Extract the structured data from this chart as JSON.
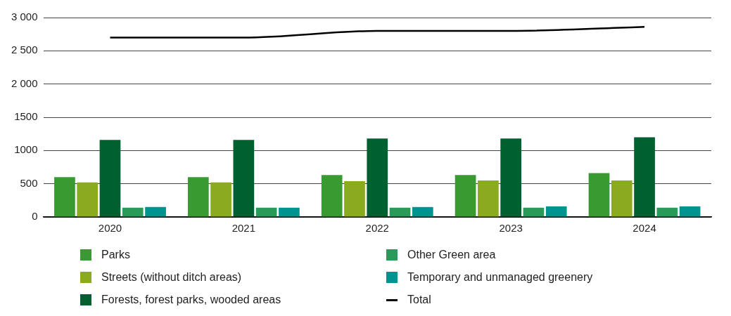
{
  "chart_data": {
    "type": "bar",
    "categories": [
      "2020",
      "2021",
      "2022",
      "2023",
      "2024"
    ],
    "series": [
      {
        "name": "Parks",
        "color": "#3a9a32",
        "values": [
          600,
          600,
          630,
          630,
          660
        ]
      },
      {
        "name": "Streets (without ditch areas)",
        "color": "#8aab1f",
        "values": [
          520,
          520,
          540,
          550,
          550
        ]
      },
      {
        "name": "Forests, forest parks, wooded areas",
        "color": "#006030",
        "values": [
          1160,
          1160,
          1180,
          1180,
          1200
        ]
      },
      {
        "name": "Other Green area",
        "color": "#2a9a5a",
        "values": [
          140,
          140,
          140,
          140,
          140
        ]
      },
      {
        "name": "Temporary and unmanaged greenery",
        "color": "#009490",
        "values": [
          150,
          140,
          150,
          160,
          160
        ]
      },
      {
        "name": "Total",
        "type": "line",
        "color": "#000000",
        "values": [
          2700,
          2700,
          2800,
          2800,
          2860
        ]
      }
    ],
    "ylim": [
      0,
      3000
    ],
    "yticks": [
      0,
      500,
      {
        "value": 1000,
        "label": "1000"
      },
      {
        "value": 1500,
        "label": "1500"
      },
      {
        "value": 2000,
        "label": "2 000"
      },
      {
        "value": 2500,
        "label": "2 500"
      },
      {
        "value": 3000,
        "label": "3 000"
      }
    ],
    "grid": "y",
    "legend": "bottom",
    "marker": "none"
  }
}
